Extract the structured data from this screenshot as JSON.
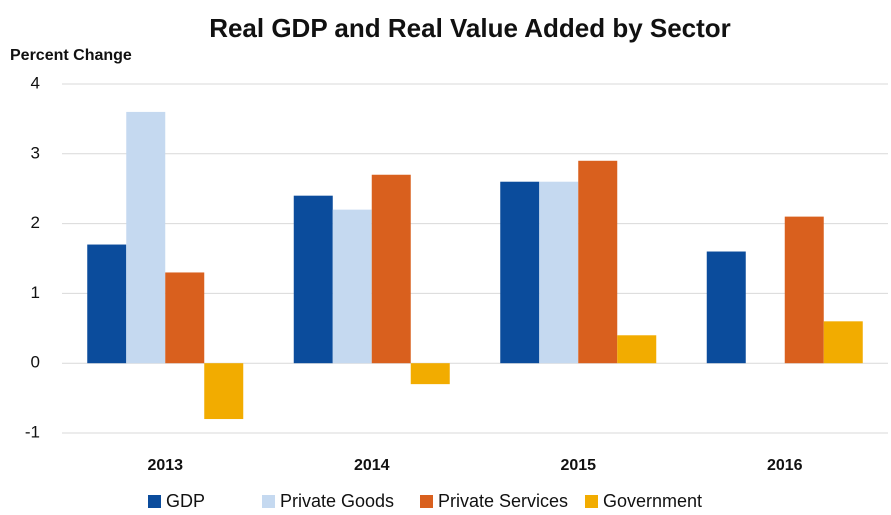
{
  "chart_data": {
    "type": "bar",
    "title": "Real GDP and Real Value Added by Sector",
    "y_label": "Percent Change",
    "categories": [
      "2013",
      "2014",
      "2015",
      "2016"
    ],
    "series": [
      {
        "name": "GDP",
        "color": "#0b4c9c",
        "values": [
          1.7,
          2.4,
          2.6,
          1.6
        ]
      },
      {
        "name": "Private Goods",
        "color": "#c5d9f0",
        "values": [
          3.6,
          2.2,
          2.6,
          null
        ]
      },
      {
        "name": "Private Services",
        "color": "#d9601e",
        "values": [
          1.3,
          2.7,
          2.9,
          2.1
        ]
      },
      {
        "name": "Government",
        "color": "#f2ac00",
        "values": [
          -0.8,
          -0.3,
          0.4,
          0.6
        ]
      }
    ],
    "ylim": [
      -1,
      4
    ],
    "yticks": [
      -1,
      0,
      1,
      2,
      3,
      4
    ],
    "grid": true
  }
}
